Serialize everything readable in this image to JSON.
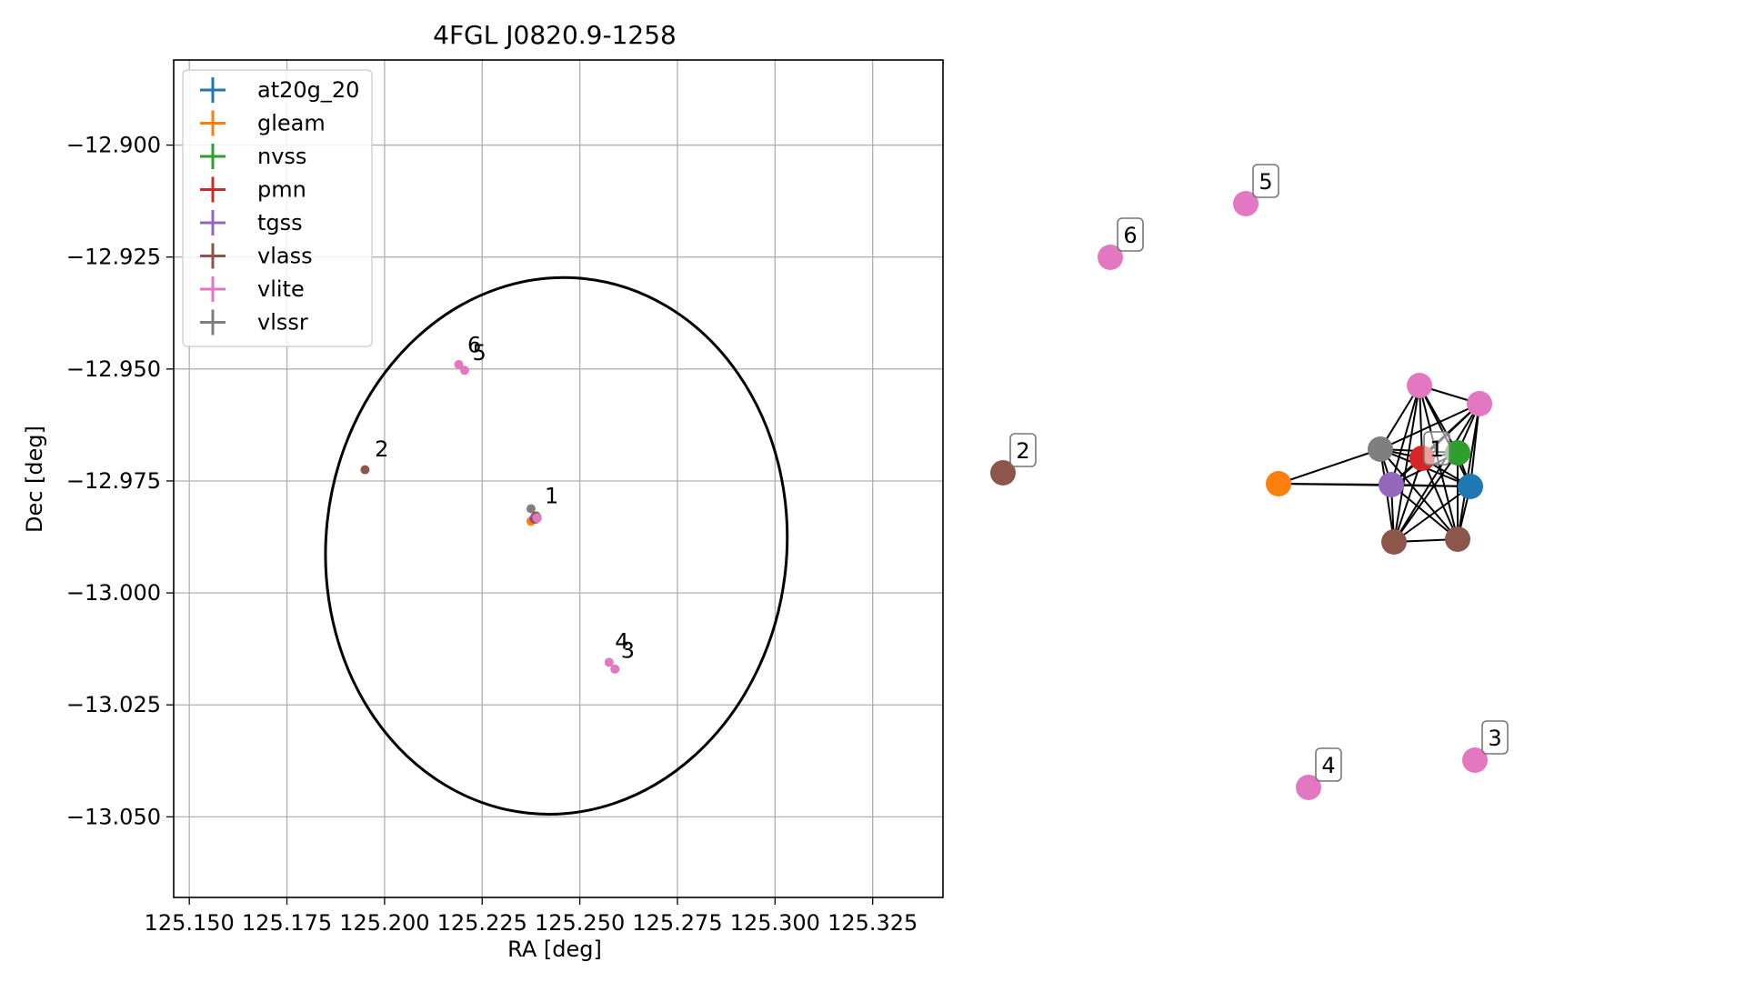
{
  "chart_data": [
    {
      "type": "scatter",
      "title": "4FGL J0820.9-1258",
      "xlabel": "RA [deg]",
      "ylabel": "Dec [deg]",
      "xlim": [
        125.146,
        125.343
      ],
      "ylim": [
        -13.068,
        -12.881
      ],
      "xticks": [
        125.15,
        125.175,
        125.2,
        125.225,
        125.25,
        125.275,
        125.3,
        125.325
      ],
      "xtick_labels": [
        "125.150",
        "125.175",
        "125.200",
        "125.225",
        "125.250",
        "125.275",
        "125.300",
        "125.325"
      ],
      "yticks": [
        -12.9,
        -12.925,
        -12.95,
        -12.975,
        -13.0,
        -13.025,
        -13.05
      ],
      "ytick_labels": [
        "−12.900",
        "−12.925",
        "−12.950",
        "−12.975",
        "−13.000",
        "−13.025",
        "−13.050"
      ],
      "grid": true,
      "legend_position": "top-left",
      "series": [
        {
          "name": "at20g_20",
          "color": "#1f77b4",
          "points": [
            {
              "x": 125.239,
              "y": -12.983
            }
          ]
        },
        {
          "name": "gleam",
          "color": "#ff7f0e",
          "points": [
            {
              "x": 125.2375,
              "y": -12.984
            }
          ]
        },
        {
          "name": "nvss",
          "color": "#2ca02c",
          "points": [
            {
              "x": 125.2388,
              "y": -12.9828
            }
          ]
        },
        {
          "name": "pmn",
          "color": "#d62728",
          "points": [
            {
              "x": 125.2385,
              "y": -12.983
            }
          ]
        },
        {
          "name": "tgss",
          "color": "#9467bd",
          "points": [
            {
              "x": 125.2382,
              "y": -12.9834
            }
          ]
        },
        {
          "name": "vlass",
          "color": "#8c564b",
          "points": [
            {
              "x": 125.195,
              "y": -12.9725
            },
            {
              "x": 125.2384,
              "y": -12.9835
            },
            {
              "x": 125.2388,
              "y": -12.9835
            }
          ]
        },
        {
          "name": "vlite",
          "color": "#e377c2",
          "points": [
            {
              "x": 125.219,
              "y": -12.949
            },
            {
              "x": 125.2205,
              "y": -12.9503
            },
            {
              "x": 125.259,
              "y": -13.017
            },
            {
              "x": 125.2575,
              "y": -13.0155
            },
            {
              "x": 125.239,
              "y": -12.9832
            },
            {
              "x": 125.2391,
              "y": -12.9833
            }
          ]
        },
        {
          "name": "vlssr",
          "color": "#7f7f7f",
          "points": [
            {
              "x": 125.2375,
              "y": -12.9812
            }
          ]
        }
      ],
      "annotations": [
        {
          "text": "1",
          "x": 125.241,
          "y": -12.98
        },
        {
          "text": "2",
          "x": 125.1975,
          "y": -12.9695
        },
        {
          "text": "3",
          "x": 125.2605,
          "y": -13.0145
        },
        {
          "text": "4",
          "x": 125.259,
          "y": -13.0125
        },
        {
          "text": "5",
          "x": 125.2225,
          "y": -12.948
        },
        {
          "text": "6",
          "x": 125.2212,
          "y": -12.9463
        }
      ],
      "ellipse": {
        "center": [
          125.244,
          -12.9895
        ],
        "ra_semi_axis": 0.059,
        "dec_semi_axis": 0.06,
        "angle_deg": 6,
        "color": "#000000"
      }
    },
    {
      "type": "network",
      "nodes": [
        {
          "id": "n5",
          "color": "#e377c2",
          "label": "5"
        },
        {
          "id": "n6",
          "color": "#e377c2",
          "label": "6"
        },
        {
          "id": "n2",
          "color": "#8c564b",
          "label": "2"
        },
        {
          "id": "n3",
          "color": "#e377c2",
          "label": "3"
        },
        {
          "id": "n4",
          "color": "#e377c2",
          "label": "4"
        },
        {
          "id": "orange",
          "color": "#ff7f0e",
          "label": ""
        },
        {
          "id": "gray",
          "color": "#7f7f7f",
          "label": ""
        },
        {
          "id": "pinkTop",
          "color": "#e377c2",
          "label": ""
        },
        {
          "id": "pinkRight",
          "color": "#e377c2",
          "label": ""
        },
        {
          "id": "green",
          "color": "#2ca02c",
          "label": ""
        },
        {
          "id": "blue",
          "color": "#1f77b4",
          "label": ""
        },
        {
          "id": "purple",
          "color": "#9467bd",
          "label": ""
        },
        {
          "id": "brownL",
          "color": "#8c564b",
          "label": ""
        },
        {
          "id": "brownR",
          "color": "#8c564b",
          "label": ""
        },
        {
          "id": "red",
          "color": "#d62728",
          "label": "1"
        }
      ],
      "edges": [
        [
          "orange",
          "gray"
        ],
        [
          "orange",
          "purple"
        ],
        [
          "orange",
          "blue"
        ],
        [
          "gray",
          "pinkTop"
        ],
        [
          "gray",
          "pinkRight"
        ],
        [
          "gray",
          "green"
        ],
        [
          "gray",
          "blue"
        ],
        [
          "gray",
          "purple"
        ],
        [
          "gray",
          "brownL"
        ],
        [
          "gray",
          "brownR"
        ],
        [
          "gray",
          "red"
        ],
        [
          "pinkTop",
          "pinkRight"
        ],
        [
          "pinkTop",
          "green"
        ],
        [
          "pinkTop",
          "blue"
        ],
        [
          "pinkTop",
          "purple"
        ],
        [
          "pinkTop",
          "brownL"
        ],
        [
          "pinkTop",
          "brownR"
        ],
        [
          "pinkTop",
          "red"
        ],
        [
          "pinkRight",
          "green"
        ],
        [
          "pinkRight",
          "blue"
        ],
        [
          "pinkRight",
          "purple"
        ],
        [
          "pinkRight",
          "brownL"
        ],
        [
          "pinkRight",
          "brownR"
        ],
        [
          "pinkRight",
          "red"
        ],
        [
          "green",
          "blue"
        ],
        [
          "green",
          "purple"
        ],
        [
          "green",
          "brownL"
        ],
        [
          "green",
          "brownR"
        ],
        [
          "green",
          "red"
        ],
        [
          "blue",
          "purple"
        ],
        [
          "blue",
          "brownL"
        ],
        [
          "blue",
          "brownR"
        ],
        [
          "blue",
          "red"
        ],
        [
          "purple",
          "brownL"
        ],
        [
          "purple",
          "brownR"
        ],
        [
          "purple",
          "red"
        ],
        [
          "brownL",
          "brownR"
        ],
        [
          "brownL",
          "red"
        ],
        [
          "brownR",
          "red"
        ]
      ]
    }
  ]
}
